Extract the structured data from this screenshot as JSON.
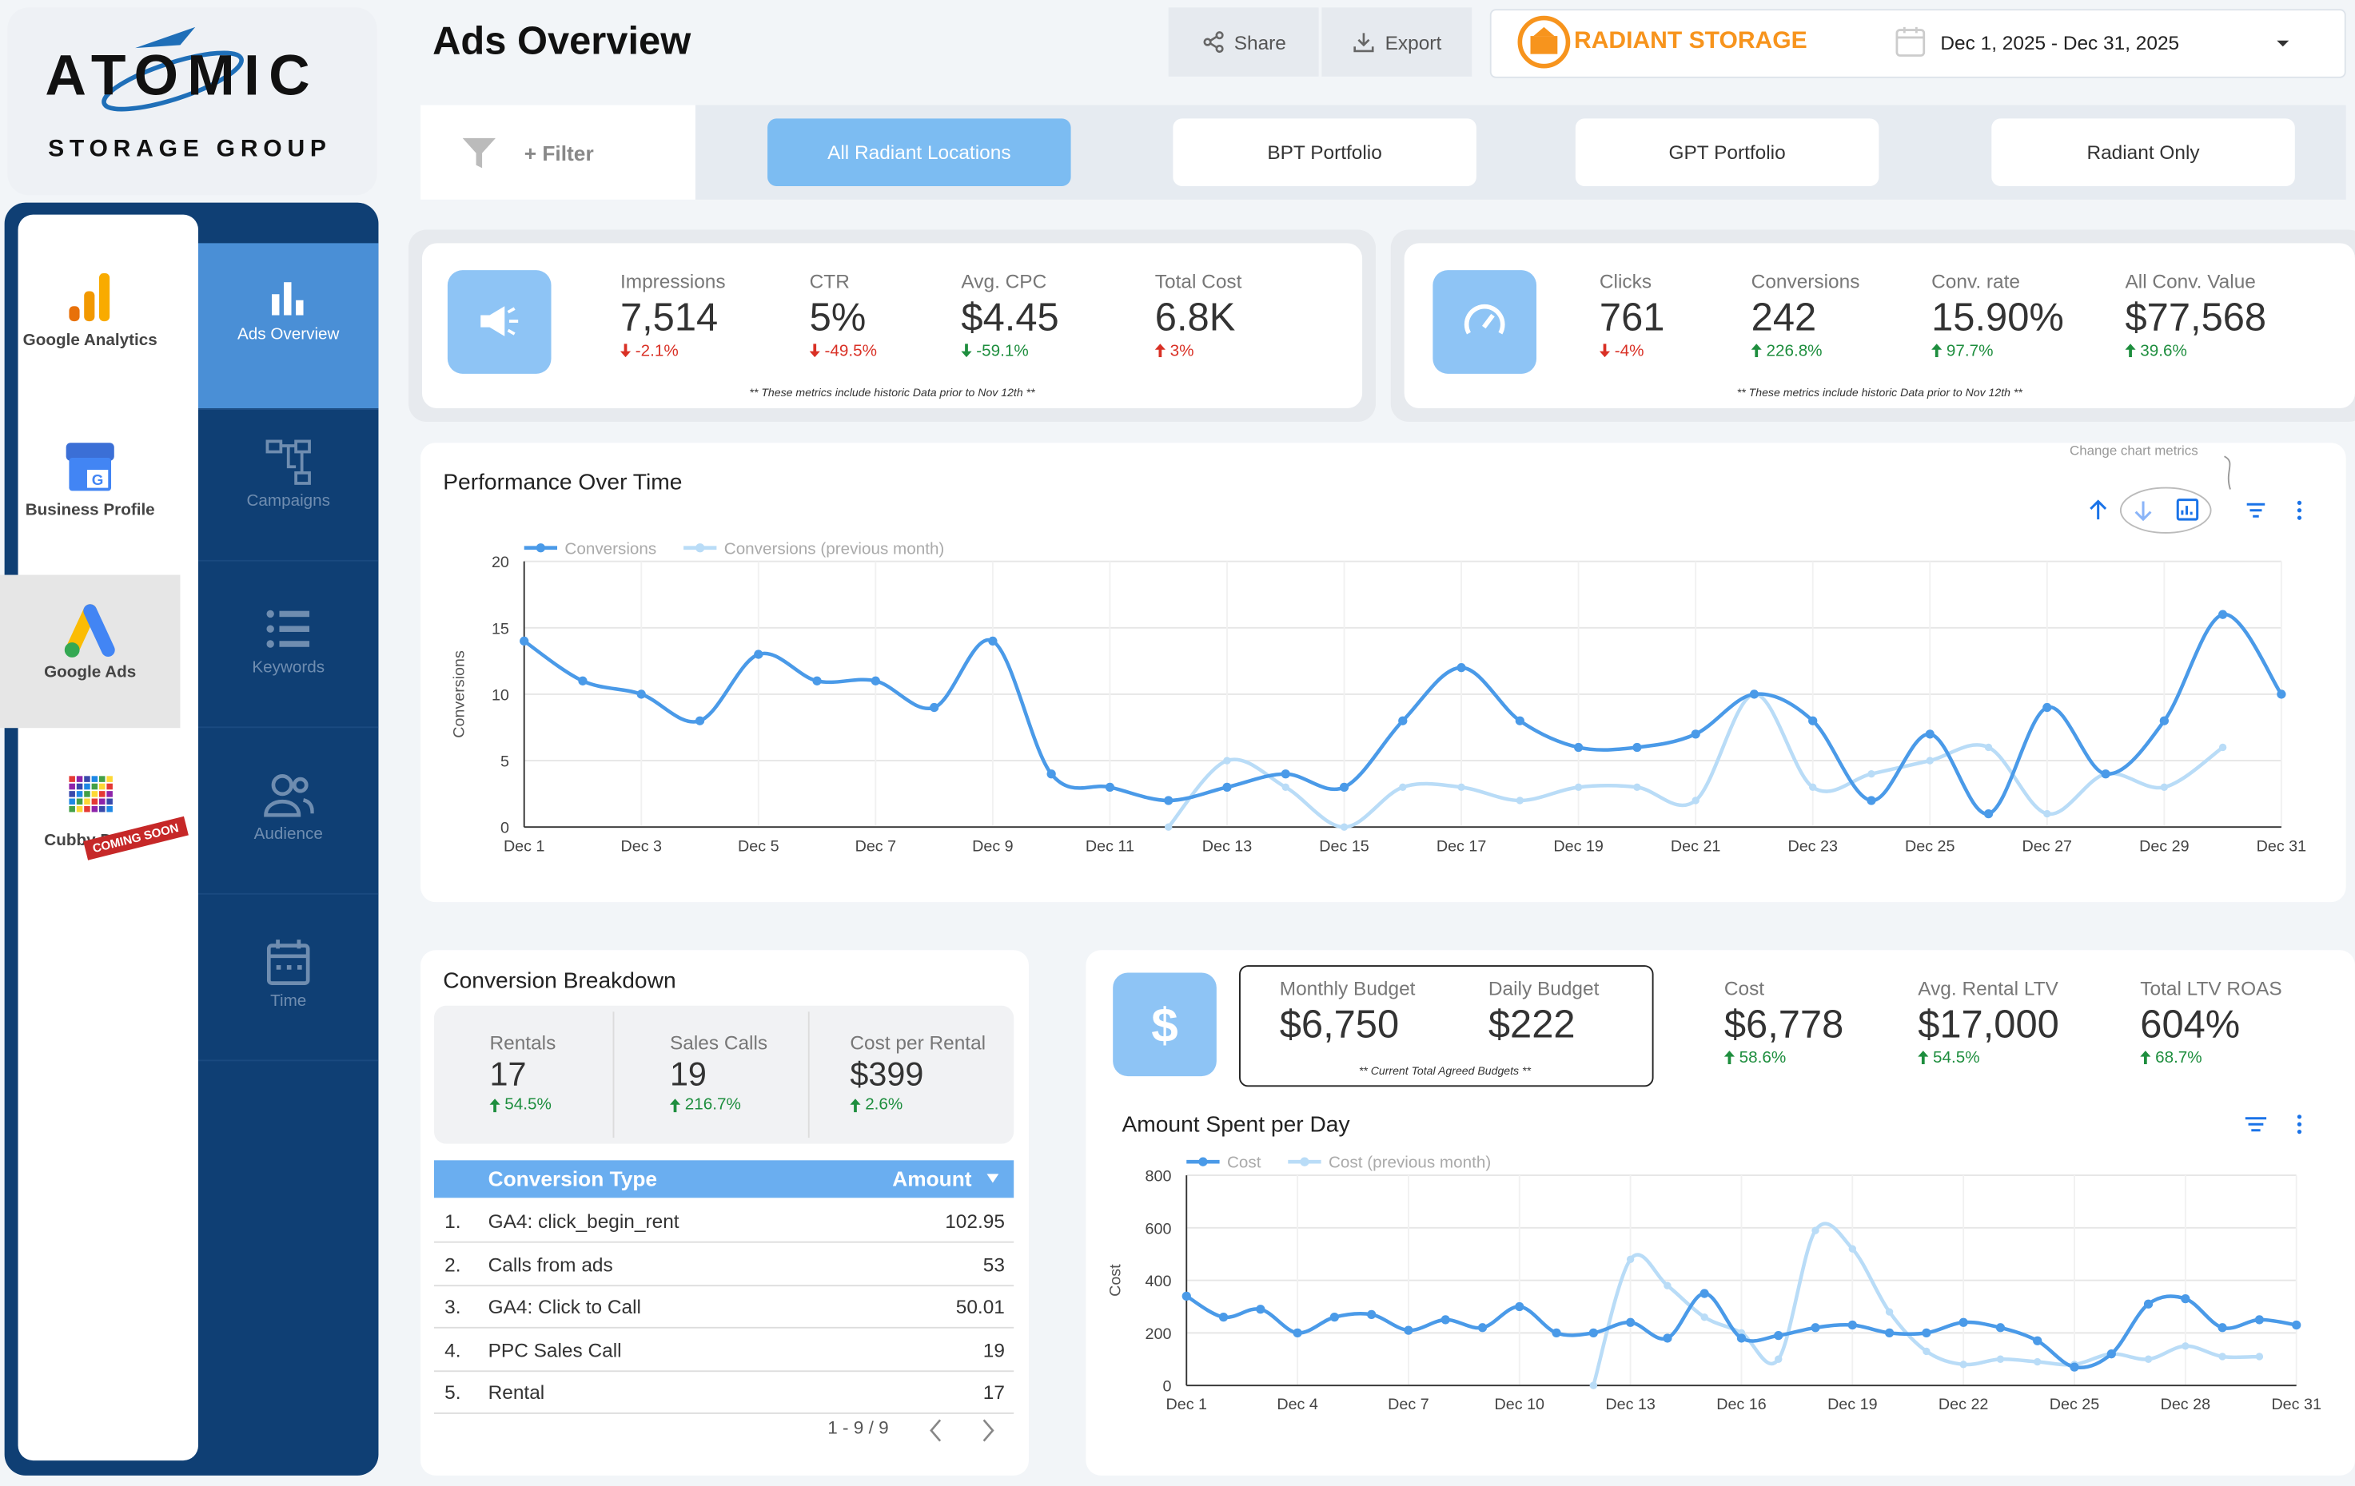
{
  "sidebar": {
    "logo": {
      "line1": "ATOMIC",
      "line2": "STORAGE GROUP"
    },
    "apps": [
      {
        "label": "Google Analytics"
      },
      {
        "label": "Business Profile"
      },
      {
        "label": "Google Ads"
      },
      {
        "label": "Cubby Data",
        "badge": "COMING SOON"
      }
    ],
    "selected_app": 2,
    "tabs": [
      "Ads Overview",
      "Campaigns",
      "Keywords",
      "Audience",
      "Time"
    ],
    "selected_tab": 0
  },
  "header": {
    "title": "Ads Overview",
    "share": "Share",
    "export": "Export",
    "brand": "RADIANT STORAGE",
    "date_range": "Dec 1, 2025 - Dec 31, 2025"
  },
  "filters": {
    "label": "+ Filter",
    "options": [
      "All Radiant Locations",
      "BPT Portfolio",
      "GPT Portfolio",
      "Radiant Only"
    ],
    "selected": 0
  },
  "kpi_cards": [
    {
      "metrics": [
        {
          "label": "Impressions",
          "value": "7,514",
          "delta": "-2.1%",
          "direction": "down",
          "color": "#d93025"
        },
        {
          "label": "CTR",
          "value": "5%",
          "delta": "-49.5%",
          "direction": "down",
          "color": "#d93025"
        },
        {
          "label": "Avg. CPC",
          "value": "$4.45",
          "delta": "-59.1%",
          "direction": "down",
          "color": "#1e8e3e"
        },
        {
          "label": "Total Cost",
          "value": "6.8K",
          "delta": "3%",
          "direction": "up",
          "color": "#d93025"
        }
      ],
      "note": "** These metrics include historic Data prior to Nov 12th **"
    },
    {
      "metrics": [
        {
          "label": "Clicks",
          "value": "761",
          "delta": "-4%",
          "direction": "down",
          "color": "#d93025"
        },
        {
          "label": "Conversions",
          "value": "242",
          "delta": "226.8%",
          "direction": "up",
          "color": "#1e8e3e"
        },
        {
          "label": "Conv. rate",
          "value": "15.90%",
          "delta": "97.7%",
          "direction": "up",
          "color": "#1e8e3e"
        },
        {
          "label": "All Conv. Value",
          "value": "$77,568",
          "delta": "39.6%",
          "direction": "up",
          "color": "#1e8e3e"
        }
      ],
      "note": "** These metrics include historic Data prior to Nov 12th **"
    }
  ],
  "performance_hint": "Change chart metrics",
  "breakdown": {
    "title": "Conversion Breakdown",
    "stats": [
      {
        "label": "Rentals",
        "value": "17",
        "delta": "54.5%",
        "direction": "up",
        "color": "#1e8e3e"
      },
      {
        "label": "Sales Calls",
        "value": "19",
        "delta": "216.7%",
        "direction": "up",
        "color": "#1e8e3e"
      },
      {
        "label": "Cost per Rental",
        "value": "$399",
        "delta": "2.6%",
        "direction": "up",
        "color": "#1e8e3e"
      }
    ],
    "table": {
      "columns": [
        "Conversion Type",
        "Amount"
      ],
      "rows": [
        {
          "index": "1.",
          "type": "GA4: click_begin_rent",
          "amount": 102.95
        },
        {
          "index": "2.",
          "type": "Calls from ads",
          "amount": 53
        },
        {
          "index": "3.",
          "type": "GA4: Click to Call",
          "amount": 50.01
        },
        {
          "index": "4.",
          "type": "PPC Sales Call",
          "amount": 19
        },
        {
          "index": "5.",
          "type": "Rental",
          "amount": 17
        }
      ],
      "pagination": "1 - 9 / 9"
    }
  },
  "budget": {
    "budgets": [
      {
        "label": "Monthly Budget",
        "value": "$6,750"
      },
      {
        "label": "Daily Budget",
        "value": "$222"
      }
    ],
    "budget_note": "** Current Total Agreed Budgets **",
    "metrics": [
      {
        "label": "Cost",
        "value": "$6,778",
        "delta": "58.6%",
        "direction": "up",
        "color": "#1e8e3e"
      },
      {
        "label": "Avg. Rental LTV",
        "value": "$17,000",
        "delta": "54.5%",
        "direction": "up",
        "color": "#1e8e3e"
      },
      {
        "label": "Total LTV ROAS",
        "value": "604%",
        "delta": "68.7%",
        "direction": "up",
        "color": "#1e8e3e"
      }
    ]
  },
  "chart_data": [
    {
      "type": "line",
      "title": "Performance Over Time",
      "y_label": "Conversions",
      "categories": [
        "Dec 1",
        null,
        "Dec 3",
        null,
        "Dec 5",
        null,
        "Dec 7",
        null,
        "Dec 9",
        null,
        "Dec 11",
        null,
        "Dec 13",
        null,
        "Dec 15",
        null,
        "Dec 17",
        null,
        "Dec 19",
        null,
        "Dec 21",
        null,
        "Dec 23",
        null,
        "Dec 25",
        null,
        "Dec 27",
        null,
        "Dec 29",
        null,
        "Dec 31"
      ],
      "series": [
        {
          "name": "Conversions",
          "color": "#4a9ae8",
          "values": [
            14,
            11,
            10,
            8,
            13,
            11,
            11,
            9,
            14,
            4,
            3,
            2,
            3,
            4,
            3,
            8,
            12,
            8,
            6,
            6,
            7,
            10,
            8,
            2,
            7,
            1,
            9,
            4,
            8,
            16,
            10
          ]
        },
        {
          "name": "Conversions (previous month)",
          "color": "#b9dcf7",
          "values": [
            null,
            null,
            null,
            null,
            null,
            null,
            null,
            null,
            null,
            null,
            null,
            0,
            5,
            3,
            0,
            3,
            3,
            2,
            3,
            3,
            2,
            10,
            3,
            4,
            5,
            6,
            1,
            4,
            3,
            6,
            null
          ]
        }
      ],
      "ylim": [
        0,
        20
      ],
      "yticks": [
        0,
        5,
        10,
        15,
        20
      ],
      "grid": true,
      "legend": "top-left"
    },
    {
      "type": "line",
      "title": "Amount Spent per Day",
      "y_label": "Cost",
      "categories": [
        "Dec 1",
        null,
        null,
        "Dec 4",
        null,
        null,
        "Dec 7",
        null,
        null,
        "Dec 10",
        null,
        null,
        "Dec 13",
        null,
        null,
        "Dec 16",
        null,
        null,
        "Dec 19",
        null,
        null,
        "Dec 22",
        null,
        null,
        "Dec 25",
        null,
        null,
        "Dec 28",
        null,
        null,
        "Dec 31"
      ],
      "series": [
        {
          "name": "Cost",
          "color": "#4a9ae8",
          "values": [
            340,
            260,
            290,
            200,
            260,
            270,
            210,
            250,
            220,
            300,
            200,
            200,
            240,
            180,
            350,
            180,
            190,
            220,
            230,
            200,
            200,
            240,
            220,
            170,
            70,
            120,
            310,
            330,
            220,
            250,
            230
          ]
        },
        {
          "name": "Cost (previous month)",
          "color": "#b9dcf7",
          "values": [
            null,
            null,
            null,
            null,
            null,
            null,
            null,
            null,
            null,
            null,
            null,
            0,
            480,
            380,
            260,
            200,
            100,
            590,
            520,
            280,
            130,
            80,
            100,
            90,
            80,
            120,
            100,
            150,
            110,
            110,
            null
          ]
        }
      ],
      "ylim": [
        0,
        800
      ],
      "yticks": [
        0,
        200,
        400,
        600,
        800
      ],
      "grid": true,
      "legend": "top-left"
    }
  ]
}
